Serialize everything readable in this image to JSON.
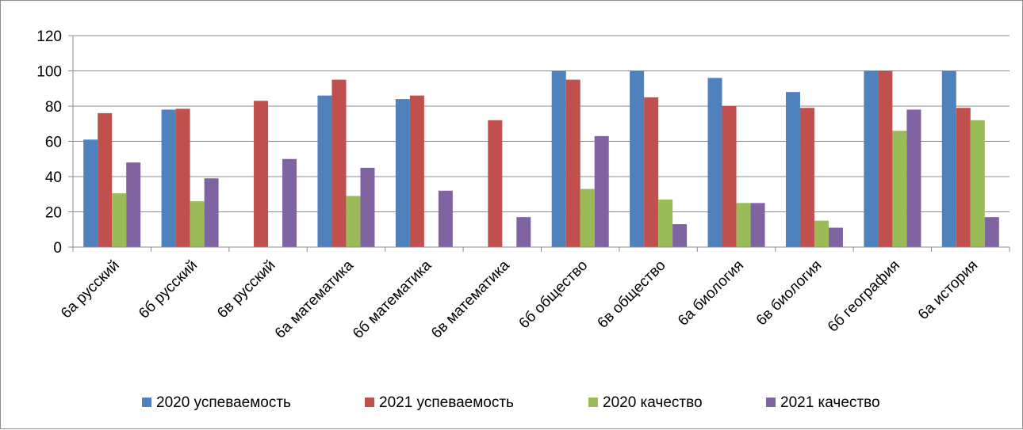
{
  "chart_data": {
    "type": "bar",
    "title": "",
    "xlabel": "",
    "ylabel": "",
    "ylim": [
      0,
      120
    ],
    "yticks": [
      0,
      20,
      40,
      60,
      80,
      100,
      120
    ],
    "grid": true,
    "legend_position": "bottom",
    "categories": [
      "6а русский",
      "6б русский",
      "6в русский",
      "6а математика",
      "6б математика",
      "6в математика",
      "6б общество",
      "6в общество",
      "6а биология",
      "6в биология",
      "6б география",
      "6а история"
    ],
    "series": [
      {
        "name": "2020 успеваемость",
        "color": "#4F81BD",
        "values": [
          61,
          78,
          null,
          86,
          84,
          null,
          100,
          100,
          96,
          88,
          100,
          100
        ]
      },
      {
        "name": "2021 успеваемость",
        "color": "#C0504D",
        "values": [
          76,
          78.5,
          83,
          95,
          86,
          72,
          95,
          85,
          80,
          79,
          100,
          79
        ]
      },
      {
        "name": "2020 качество",
        "color": "#9BBB59",
        "values": [
          30.5,
          26,
          null,
          29,
          null,
          null,
          33,
          27,
          25,
          15,
          66,
          72
        ]
      },
      {
        "name": "2021 качество",
        "color": "#8064A2",
        "values": [
          48,
          39,
          50,
          45,
          32,
          17,
          63,
          13,
          25,
          11,
          78,
          17
        ]
      }
    ]
  }
}
